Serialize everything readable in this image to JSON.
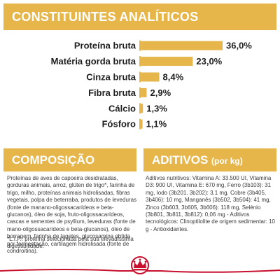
{
  "header": {
    "title": "CONSTITUINTES ANALÍTICOS"
  },
  "chart_data": {
    "type": "bar",
    "orientation": "horizontal",
    "categories": [
      "Proteína bruta",
      "Matéria gorda bruta",
      "Cinza bruta",
      "Fibra bruta",
      "Cálcio",
      "Fósforo"
    ],
    "values": [
      36.0,
      23.0,
      8.4,
      2.9,
      1.3,
      1.1
    ],
    "value_labels": [
      "36,0%",
      "23,0%",
      "8,4%",
      "2,9%",
      "1,3%",
      "1,1%"
    ],
    "unit": "%",
    "xlim": [
      0,
      36
    ],
    "grid": false,
    "legend": "none",
    "bar_color": "#e6b64a"
  },
  "composicao": {
    "title": "COMPOSIÇÃO",
    "text": "Proteínas de aves de capoeira desidratadas, gorduras animais, arroz, glúten de trigo*, farinha de trigo, milho, proteínas animais hidrolisadas, fibras vegetais, polpa de beterraba, produtos de leveduras (fonte de manano-oligossacarídeos e beta-glucanos), óleo de soja, fruto-oligossacarídeos, cascas e sementes de psyllium, leveduras (fonte de mano-oligossacarídeos e beta-glucanos), óleo de borragem, farinha de tagetes, glucosamina obtida por fermentação, cartilagem hidrolisada (fonte de condroitina).",
    "footnote": "*L.I.P.: proteína selecionada pela sua elevadíssima digestibilidade."
  },
  "aditivos": {
    "title": "ADITIVOS",
    "unit": "(por kg)",
    "text": "Aditivos nutritivos: Vitamina A: 33.500 UI, Vitamina D3: 900 UI, Vitamina E: 670 mg, Ferro (3b103): 31 mg, Iodo (3b201, 3b202): 3,1 mg, Cobre (3b405, 3b406): 10 mg, Manganês (3b502, 3b504): 41 mg, Zinco (3b603, 3b605, 3b606): 118 mg, Selénio (3b801, 3b811, 3b812): 0,06 mg - Aditivos tecnológicos: Clinoptilolite de origem sedimentar: 10 g - Antioxidantes."
  },
  "colors": {
    "accent": "#e6b64a",
    "brand_red": "#c8102e"
  },
  "footer": {
    "logo_icon": "royal-canin-crown-icon"
  }
}
